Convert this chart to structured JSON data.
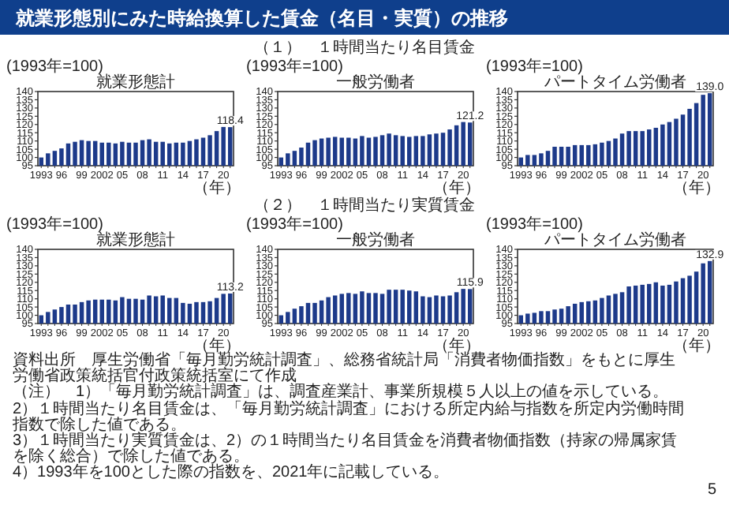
{
  "chart_data": [
    {
      "type": "bar",
      "annotations": [
        "就業形態別にみた時給換算した賃金（名目・実質）の推移"
      ],
      "title": "就業形態計",
      "ylabel": "(1993年=100)",
      "xlabel": "（年）",
      "color": "#1d3a8a",
      "ylim": [
        95,
        140
      ],
      "yticks": [
        95,
        100,
        105,
        110,
        115,
        120,
        125,
        130,
        135,
        140
      ],
      "categories": [
        "1993",
        null,
        null,
        "96",
        null,
        null,
        "99",
        null,
        null,
        "2002",
        null,
        null,
        "05",
        null,
        null,
        "08",
        null,
        null,
        "11",
        null,
        null,
        "14",
        null,
        null,
        "17",
        null,
        null,
        "20",
        null
      ],
      "values": [
        100,
        102.5,
        104,
        105.5,
        108.5,
        109.5,
        110.5,
        110,
        110,
        109,
        109,
        108.5,
        109.5,
        109,
        109,
        110.5,
        111,
        109.5,
        109.5,
        108.5,
        109,
        109,
        110,
        111,
        112,
        113.5,
        116,
        118.5,
        118.4
      ],
      "value_labels": [
        null,
        null,
        null,
        null,
        null,
        null,
        null,
        null,
        null,
        null,
        null,
        null,
        null,
        null,
        null,
        null,
        null,
        null,
        null,
        null,
        null,
        null,
        null,
        null,
        null,
        null,
        null,
        null,
        "118.4"
      ]
    },
    {
      "type": "bar",
      "annotations": [
        "（１）　１時間当たり名目賃金"
      ],
      "title": "一般労働者",
      "ylabel": "(1993年=100)",
      "xlabel": "（年）",
      "color": "#1d3a8a",
      "ylim": [
        95,
        140
      ],
      "yticks": [
        95,
        100,
        105,
        110,
        115,
        120,
        125,
        130,
        135,
        140
      ],
      "categories": [
        "1993",
        null,
        null,
        "96",
        null,
        null,
        "99",
        null,
        null,
        "2002",
        null,
        null,
        "05",
        null,
        null,
        "08",
        null,
        null,
        "11",
        null,
        null,
        "14",
        null,
        null,
        "17",
        null,
        null,
        "20",
        null
      ],
      "values": [
        100,
        102.5,
        104,
        106,
        109,
        110.5,
        111.5,
        112,
        112.5,
        112,
        112,
        111.5,
        113,
        112,
        112.5,
        113.5,
        114.5,
        113.5,
        113,
        112.5,
        113,
        113,
        114,
        114.5,
        115,
        117,
        119.5,
        121.5,
        121.2
      ],
      "value_labels": [
        null,
        null,
        null,
        null,
        null,
        null,
        null,
        null,
        null,
        null,
        null,
        null,
        null,
        null,
        null,
        null,
        null,
        null,
        null,
        null,
        null,
        null,
        null,
        null,
        null,
        null,
        null,
        null,
        "121.2"
      ]
    },
    {
      "type": "bar",
      "title": "パートタイム労働者",
      "ylabel": "(1993年=100)",
      "xlabel": "（年）",
      "color": "#1d3a8a",
      "ylim": [
        95,
        140
      ],
      "yticks": [
        95,
        100,
        105,
        110,
        115,
        120,
        125,
        130,
        135,
        140
      ],
      "categories": [
        "1993",
        null,
        null,
        "96",
        null,
        null,
        "99",
        null,
        null,
        "2002",
        null,
        null,
        "05",
        null,
        null,
        "08",
        null,
        null,
        "11",
        null,
        null,
        "14",
        null,
        null,
        "17",
        null,
        null,
        "20",
        null
      ],
      "values": [
        100,
        101.5,
        101.5,
        102.5,
        104,
        106.5,
        106.5,
        106.5,
        107.5,
        107.5,
        107.5,
        108,
        109,
        110,
        111.5,
        114.5,
        116,
        116,
        116,
        117,
        118,
        120,
        121.5,
        123.5,
        126,
        129.5,
        133,
        138,
        139.0
      ],
      "value_labels": [
        null,
        null,
        null,
        null,
        null,
        null,
        null,
        null,
        null,
        null,
        null,
        null,
        null,
        null,
        null,
        null,
        null,
        null,
        null,
        null,
        null,
        null,
        null,
        null,
        null,
        null,
        null,
        null,
        "139.0"
      ]
    },
    {
      "type": "bar",
      "annotations": [
        "資料出所　厚生労働省「毎月勤労統計調査」、総務省統計局「消費者物価指数」をもとに厚生労働省政策統括官付政策統括室にて作成",
        "（注）　1）「毎月勤労統計調査」は、調査産業計、事業所規模５人以上の値を示している。",
        "2）１時間当たり名目賃金は、「毎月勤労統計調査」における所定内給与指数を所定内労働時間指数で除した値である。",
        "3）１時間当たり実質賃金は、2）の１時間当たり名目賃金を消費者物価指数（持家の帰属家賃を除く総合）で除した値である。",
        "4）1993年を100とした際の指数を、2021年に記載している。",
        "5"
      ],
      "title": "就業形態計",
      "ylabel": "(1993年=100)",
      "xlabel": "（年）",
      "color": "#1d3a8a",
      "ylim": [
        95,
        140
      ],
      "yticks": [
        95,
        100,
        105,
        110,
        115,
        120,
        125,
        130,
        135,
        140
      ],
      "categories": [
        "1993",
        null,
        null,
        "96",
        null,
        null,
        "99",
        null,
        null,
        "2002",
        null,
        null,
        "05",
        null,
        null,
        "08",
        null,
        null,
        "11",
        null,
        null,
        "14",
        null,
        null,
        "17",
        null,
        null,
        "20",
        null
      ],
      "values": [
        100,
        102,
        103.5,
        105,
        106.5,
        106.5,
        108,
        109,
        109.5,
        109.5,
        109.5,
        109,
        111,
        110,
        110,
        109.5,
        112,
        111.5,
        112,
        110.5,
        110.5,
        107.5,
        107,
        108,
        108,
        108.5,
        110.5,
        113,
        113.2
      ],
      "value_labels": [
        null,
        null,
        null,
        null,
        null,
        null,
        null,
        null,
        null,
        null,
        null,
        null,
        null,
        null,
        null,
        null,
        null,
        null,
        null,
        null,
        null,
        null,
        null,
        null,
        null,
        null,
        null,
        null,
        "113.2"
      ]
    },
    {
      "type": "bar",
      "annotations": [
        "（２）　１時間当たり実質賃金"
      ],
      "title": "一般労働者",
      "ylabel": "(1993年=100)",
      "xlabel": "（年）",
      "color": "#1d3a8a",
      "ylim": [
        95,
        140
      ],
      "yticks": [
        95,
        100,
        105,
        110,
        115,
        120,
        125,
        130,
        135,
        140
      ],
      "categories": [
        "1993",
        null,
        null,
        "96",
        null,
        null,
        "99",
        null,
        null,
        "2002",
        null,
        null,
        "05",
        null,
        null,
        "08",
        null,
        null,
        "11",
        null,
        null,
        "14",
        null,
        null,
        "17",
        null,
        null,
        "20",
        null
      ],
      "values": [
        100,
        102,
        104,
        105.5,
        107.5,
        107.5,
        109,
        111,
        112,
        113,
        113.5,
        113,
        114.5,
        113.5,
        113.5,
        113,
        115.5,
        115.5,
        115.5,
        115,
        114.5,
        111.5,
        111,
        112,
        111.5,
        112,
        114,
        116,
        115.9
      ],
      "value_labels": [
        null,
        null,
        null,
        null,
        null,
        null,
        null,
        null,
        null,
        null,
        null,
        null,
        null,
        null,
        null,
        null,
        null,
        null,
        null,
        null,
        null,
        null,
        null,
        null,
        null,
        null,
        null,
        null,
        "115.9"
      ]
    },
    {
      "type": "bar",
      "title": "パートタイム労働者",
      "ylabel": "(1993年=100)",
      "xlabel": "（年）",
      "color": "#1d3a8a",
      "ylim": [
        95,
        140
      ],
      "yticks": [
        95,
        100,
        105,
        110,
        115,
        120,
        125,
        130,
        135,
        140
      ],
      "categories": [
        "1993",
        null,
        null,
        "96",
        null,
        null,
        "99",
        null,
        null,
        "2002",
        null,
        null,
        "05",
        null,
        null,
        "08",
        null,
        null,
        "11",
        null,
        null,
        "14",
        null,
        null,
        "17",
        null,
        null,
        "20",
        null
      ],
      "values": [
        100,
        101,
        101.5,
        102.5,
        102.5,
        103.5,
        104,
        105.5,
        107,
        108,
        108.5,
        109,
        110.5,
        112,
        113,
        114,
        117.5,
        118,
        118.5,
        119,
        120,
        118,
        118.5,
        120.5,
        122.5,
        124,
        126.5,
        131.5,
        132.9
      ],
      "value_labels": [
        null,
        null,
        null,
        null,
        null,
        null,
        null,
        null,
        null,
        null,
        null,
        null,
        null,
        null,
        null,
        null,
        null,
        null,
        null,
        null,
        null,
        null,
        null,
        null,
        null,
        null,
        null,
        null,
        "132.9"
      ]
    }
  ]
}
